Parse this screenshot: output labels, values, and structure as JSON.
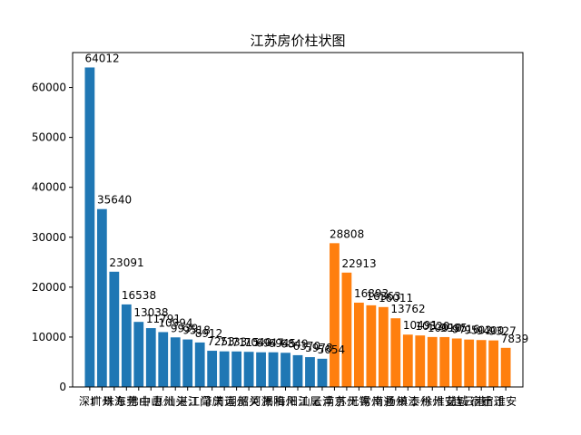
{
  "chart_data": {
    "type": "bar",
    "title": "江苏房价柱状图",
    "xlabel": "",
    "ylabel": "",
    "ylim": [
      0,
      67000
    ],
    "yticks": [
      0,
      10000,
      20000,
      30000,
      40000,
      50000,
      60000
    ],
    "ytick_labels": [
      "0",
      "10000",
      "20000",
      "30000",
      "40000",
      "50000",
      "60000"
    ],
    "grid": false,
    "colors": {
      "series_1": "#1f77b4",
      "series_2": "#ff7f0e"
    },
    "series": [
      {
        "color_key": "series_1",
        "categories": [
          "深圳",
          "广州",
          "珠海",
          "东莞",
          "佛山",
          "中山",
          "惠州",
          "汕头",
          "湛江",
          "江门",
          "肇庆",
          "清远",
          "潮州",
          "韶关",
          "河源",
          "揭阳",
          "梅州",
          "阳江",
          "汕尾",
          "云浮"
        ],
        "values": [
          64012,
          35640,
          23091,
          16538,
          13038,
          11791,
          10994,
          9939,
          9518,
          8912,
          7253,
          7133,
          7115,
          7040,
          6947,
          6945,
          6849,
          6370,
          5978,
          5654
        ],
        "labels": [
          "64012",
          "35640",
          "23091",
          "16538",
          "13038",
          "11791",
          "10994",
          "9939",
          "9518",
          "8912",
          "7253",
          "7133",
          "7115",
          "7040",
          "6947",
          "6945",
          "6849",
          "6370",
          "5978",
          "5654"
        ]
      },
      {
        "color_key": "series_2",
        "categories": [
          "南京",
          "苏州",
          "无锡",
          "常州",
          "南通",
          "扬州",
          "镇江",
          "泰州",
          "徐州",
          "淮安",
          "盐城",
          "连云港",
          "宿迁",
          "宿迁",
          "淮安"
        ],
        "values": [
          28808,
          22913,
          16893,
          16363,
          16011,
          13762,
          10491,
          10320,
          10010,
          9995,
          9716,
          9502,
          9400,
          9327,
          7839
        ],
        "labels": [
          "28808",
          "22913",
          "16893",
          "16363",
          "16011",
          "13762",
          "10491",
          "10320",
          "10010",
          "9995",
          "9716",
          "9502",
          "9400",
          "9327",
          "7839"
        ]
      }
    ],
    "x_tick_text": [
      "深圳",
      "广州",
      "珠海",
      "东莞",
      "佛山",
      "中山",
      "惠州",
      "汕头",
      "湛江",
      "江门",
      "肇庆",
      "清远",
      "潮州",
      "韶关",
      "河源",
      "揭阳",
      "梅州",
      "阳江",
      "汕尾",
      "云浮",
      "南京",
      "苏州",
      "无锡",
      "常州",
      "南通",
      "扬州",
      "镇江",
      "泰州",
      "徐州",
      "淮安",
      "盐城",
      "连云港",
      "宿迁",
      "宿迁",
      "淮安"
    ]
  }
}
